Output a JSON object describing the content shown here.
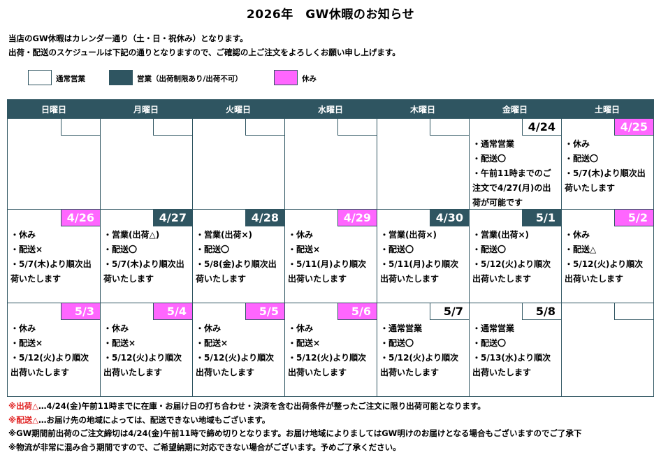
{
  "title": "2026年　GW休暇のお知らせ",
  "intro": [
    "当店のGW休暇はカレンダー通り（土・日・祝休み）となります。",
    "出荷・配送のスケジュールは下記の通りとなりますので、ご確認の上ご注文をよろしくお願い申し上げます。"
  ],
  "legend": [
    {
      "label": "通常営業",
      "color": "#ffffff"
    },
    {
      "label": "営業（出荷制限あり/出荷不可）",
      "color": "#2f5561"
    },
    {
      "label": "休み",
      "color": "#ff66ff"
    }
  ],
  "weekdays": [
    "日曜日",
    "月曜日",
    "火曜日",
    "水曜日",
    "木曜日",
    "金曜日",
    "土曜日"
  ],
  "weeks": [
    [
      {
        "date": "",
        "status": "work",
        "notes": []
      },
      {
        "date": "",
        "status": "work",
        "notes": []
      },
      {
        "date": "",
        "status": "work",
        "notes": []
      },
      {
        "date": "",
        "status": "work",
        "notes": []
      },
      {
        "date": "",
        "status": "work",
        "notes": []
      },
      {
        "date": "4/24",
        "status": "work",
        "notes": [
          "・通常営業",
          "・配送〇",
          "・午前11時までのご",
          "注文で4/27(月)の出",
          "荷が可能です"
        ]
      },
      {
        "date": "4/25",
        "status": "off",
        "notes": [
          "・休み",
          "・配送〇",
          "・5/7(木)より順次出",
          "荷いたします"
        ]
      }
    ],
    [
      {
        "date": "4/26",
        "status": "off",
        "notes": [
          "・休み",
          "・配送×",
          "・5/7(木)より順次出",
          "荷いたします"
        ]
      },
      {
        "date": "4/27",
        "status": "limited",
        "notes": [
          "・営業(出荷△)",
          "・配送〇",
          "・5/7(木)より順次出",
          "荷いたします"
        ]
      },
      {
        "date": "4/28",
        "status": "limited",
        "notes": [
          "・営業(出荷×)",
          "・配送〇",
          "・5/8(金)より順次出",
          "荷いたします"
        ]
      },
      {
        "date": "4/29",
        "status": "off",
        "notes": [
          "・休み",
          "・配送×",
          "・5/11(月)より順次",
          "出荷いたします"
        ]
      },
      {
        "date": "4/30",
        "status": "limited",
        "notes": [
          "・営業(出荷×)",
          "・配送〇",
          "・5/11(月)より順次",
          "出荷いたします"
        ]
      },
      {
        "date": "5/1",
        "status": "limited",
        "notes": [
          "・営業(出荷×)",
          "・配送〇",
          "・5/12(火)より順次",
          "出荷いたします"
        ]
      },
      {
        "date": "5/2",
        "status": "off",
        "notes": [
          "・休み",
          "・配送△",
          "・5/12(火)より順次",
          "出荷いたします"
        ]
      }
    ],
    [
      {
        "date": "5/3",
        "status": "off",
        "notes": [
          "・休み",
          "・配送×",
          "・5/12(火)より順次",
          "出荷いたします"
        ]
      },
      {
        "date": "5/4",
        "status": "off",
        "notes": [
          "・休み",
          "・配送×",
          "・5/12(火)より順次",
          "出荷いたします"
        ]
      },
      {
        "date": "5/5",
        "status": "off",
        "notes": [
          "・休み",
          "・配送×",
          "・5/12(火)より順次",
          "出荷いたします"
        ]
      },
      {
        "date": "5/6",
        "status": "off",
        "notes": [
          "・休み",
          "・配送×",
          "・5/12(火)より順次",
          "出荷いたします"
        ]
      },
      {
        "date": "5/7",
        "status": "work",
        "notes": [
          "・通常営業",
          "・配送〇",
          "・5/12(火)より順次",
          "出荷いたします"
        ]
      },
      {
        "date": "5/8",
        "status": "work",
        "notes": [
          "・通常営業",
          "・配送〇",
          "・5/13(水)より順次",
          "出荷いたします"
        ]
      },
      {
        "date": "",
        "status": "work",
        "notes": []
      }
    ]
  ],
  "footer": [
    {
      "prefix": "※",
      "red": "出荷△",
      "text": "…4/24(金)午前11時までに在庫・お届け日の打ち合わせ・決済を含む出荷条件が整ったご注文に限り出荷可能となります。"
    },
    {
      "prefix": "※",
      "red": "配送△",
      "text": "…お届け先の地域によっては、配送できない地域もございます。"
    },
    {
      "prefix": "",
      "red": "",
      "text": "※GW期間前出荷のご注文締切は4/24(金)午前11時で締め切りとなります。お届け地域によりましてはGW明けのお届けとなる場合もございますのでご了承下"
    },
    {
      "prefix": "",
      "red": "",
      "text": "※物流が非常に混み合う期間ですので、ご希望納期に対応できない場合がございます。予めご了承ください。"
    }
  ]
}
